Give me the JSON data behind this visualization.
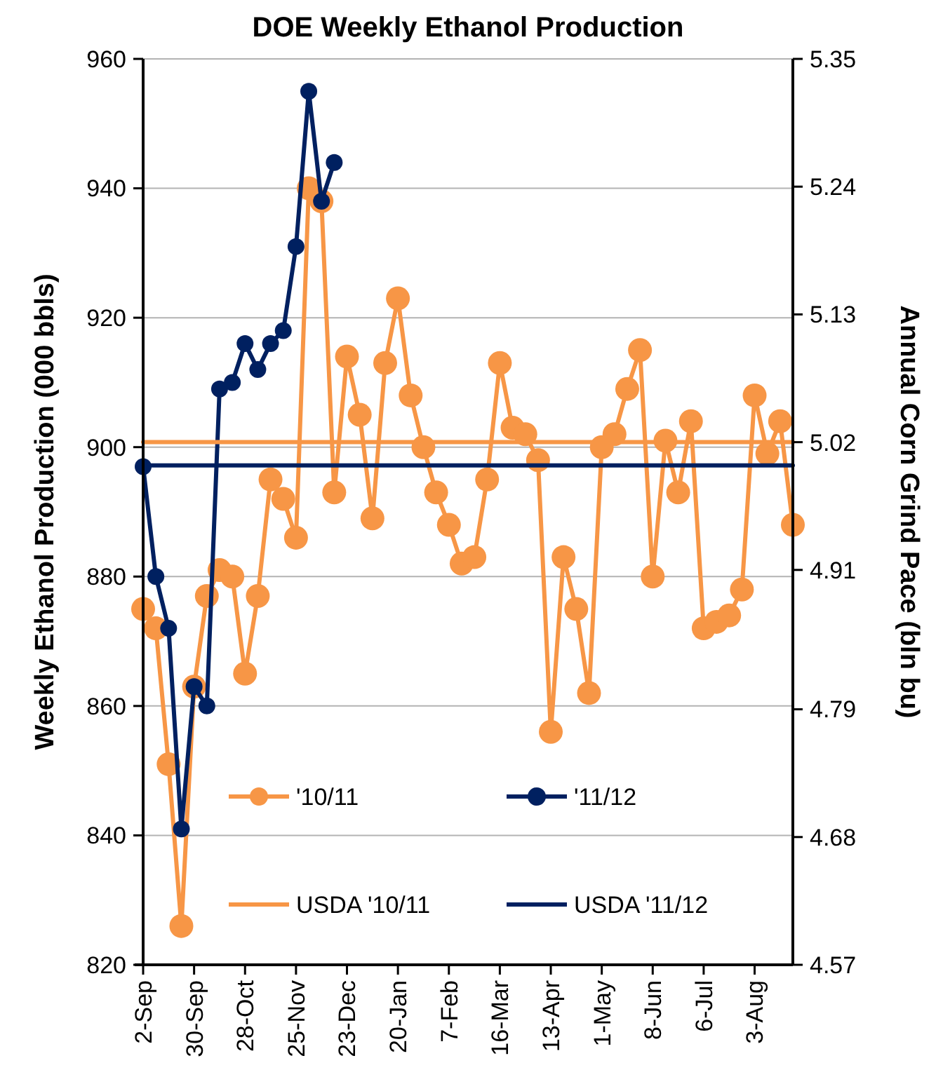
{
  "chart_data": {
    "type": "line",
    "title": "DOE Weekly Ethanol Production",
    "ylabel": "Weekly Ethanol Production (000 bbls)",
    "y2label": "Annual Corn Grind Pace (bln bu)",
    "categories": [
      "2-Sep",
      null,
      null,
      null,
      "30-Sep",
      null,
      null,
      null,
      "28-Oct",
      null,
      null,
      null,
      "25-Nov",
      null,
      null,
      null,
      "23-Dec",
      null,
      null,
      null,
      "20-Jan",
      null,
      null,
      null,
      "7-Feb",
      null,
      null,
      null,
      "16-Mar",
      null,
      null,
      null,
      "13-Apr",
      null,
      null,
      null,
      "1-May",
      null,
      null,
      null,
      "8-Jun",
      null,
      null,
      null,
      "6-Jul",
      null,
      null,
      null,
      "3-Aug",
      null,
      null,
      null
    ],
    "series": [
      {
        "name": "'10/11",
        "color": "#f79646",
        "marker": "circle",
        "values": [
          875,
          872,
          851,
          826,
          863,
          877,
          881,
          880,
          865,
          877,
          895,
          892,
          886,
          940,
          938,
          893,
          914,
          905,
          889,
          913,
          923,
          908,
          900,
          893,
          888,
          882,
          883,
          895,
          913,
          903,
          902,
          898,
          856,
          883,
          875,
          862,
          900,
          902,
          909,
          915,
          880,
          901,
          893,
          904,
          872,
          873,
          874,
          878,
          908,
          899,
          904,
          888
        ]
      },
      {
        "name": "'11/12",
        "color": "#002060",
        "marker": "circle",
        "values": [
          897,
          880,
          872,
          841,
          863,
          860,
          909,
          910,
          916,
          912,
          916,
          918,
          931,
          955,
          938,
          944,
          null,
          null,
          null,
          null,
          null,
          null,
          null,
          null,
          null,
          null,
          null,
          null,
          null,
          null,
          null,
          null,
          null,
          null,
          null,
          null,
          null,
          null,
          null,
          null,
          null,
          null,
          null,
          null,
          null,
          null,
          null,
          null,
          null,
          null,
          null,
          null
        ]
      },
      {
        "name": "USDA '10/11",
        "color": "#f79646",
        "marker": "none",
        "axis": "y2",
        "values": [
          5.02,
          5.02,
          5.02,
          5.02,
          5.02,
          5.02,
          5.02,
          5.02,
          5.02,
          5.02,
          5.02,
          5.02,
          5.02,
          5.02,
          5.02,
          5.02,
          5.02,
          5.02,
          5.02,
          5.02,
          5.02,
          5.02,
          5.02,
          5.02,
          5.02,
          5.02,
          5.02,
          5.02,
          5.02,
          5.02,
          5.02,
          5.02,
          5.02,
          5.02,
          5.02,
          5.02,
          5.02,
          5.02,
          5.02,
          5.02,
          5.02,
          5.02,
          5.02,
          5.02,
          5.02,
          5.02,
          5.02,
          5.02,
          5.02,
          5.02,
          5.02,
          5.02
        ]
      },
      {
        "name": "USDA '11/12",
        "color": "#002060",
        "marker": "none",
        "axis": "y2",
        "values": [
          5.0,
          5.0,
          5.0,
          5.0,
          5.0,
          5.0,
          5.0,
          5.0,
          5.0,
          5.0,
          5.0,
          5.0,
          5.0,
          5.0,
          5.0,
          5.0,
          5.0,
          5.0,
          5.0,
          5.0,
          5.0,
          5.0,
          5.0,
          5.0,
          5.0,
          5.0,
          5.0,
          5.0,
          5.0,
          5.0,
          5.0,
          5.0,
          5.0,
          5.0,
          5.0,
          5.0,
          5.0,
          5.0,
          5.0,
          5.0,
          5.0,
          5.0,
          5.0,
          5.0,
          5.0,
          5.0,
          5.0,
          5.0,
          5.0,
          5.0,
          5.0,
          5.0
        ]
      }
    ],
    "ylim": [
      820,
      960
    ],
    "yticks": [
      820,
      840,
      860,
      880,
      900,
      920,
      940,
      960
    ],
    "y2lim": [
      4.57,
      5.35
    ],
    "y2ticks": [
      4.57,
      4.68,
      4.79,
      4.91,
      5.02,
      5.13,
      5.24,
      5.35
    ],
    "grid": "y",
    "legend": "bottom"
  }
}
